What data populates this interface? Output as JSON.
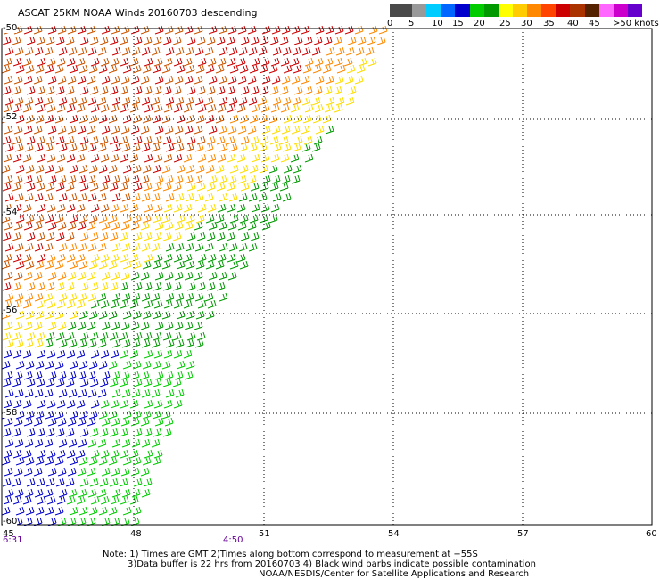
{
  "title": "ASCAT 25KM NOAA Winds 20160703 descending",
  "colorbar": {
    "colors": [
      "#4a4a4a",
      "#999999",
      "#00ccff",
      "#0066ff",
      "#0000cc",
      "#00cc00",
      "#009900",
      "#ffff00",
      "#ffcc00",
      "#ff8800",
      "#ff4400",
      "#cc0000",
      "#aa3300",
      "#552200",
      "#ff66ff",
      "#cc00cc",
      "#6600cc"
    ],
    "labels": [
      "0",
      "5",
      "10",
      "15",
      "20",
      "25",
      "30",
      "35",
      "40",
      "45",
      ">50 knots"
    ]
  },
  "map": {
    "lat_labels": [
      "-50",
      "-52",
      "-54",
      "-56",
      "-58",
      "-60"
    ],
    "lon_labels": [
      "45",
      "48",
      "51",
      "54",
      "57",
      "60"
    ],
    "time_labels": [
      {
        "text": "6:31",
        "color": "#660099"
      },
      {
        "text": "4:50",
        "color": "#660099"
      }
    ]
  },
  "notes": {
    "line1": "Note: 1) Times are GMT 2)Times along bottom correspond to measurement at −55S",
    "line2": "3)Data buffer is 22 hrs from 20160703 4) Black wind barbs indicate possible contamination",
    "line3": "NOAA/NESDIS/Center for Satellite Applications and Research"
  }
}
